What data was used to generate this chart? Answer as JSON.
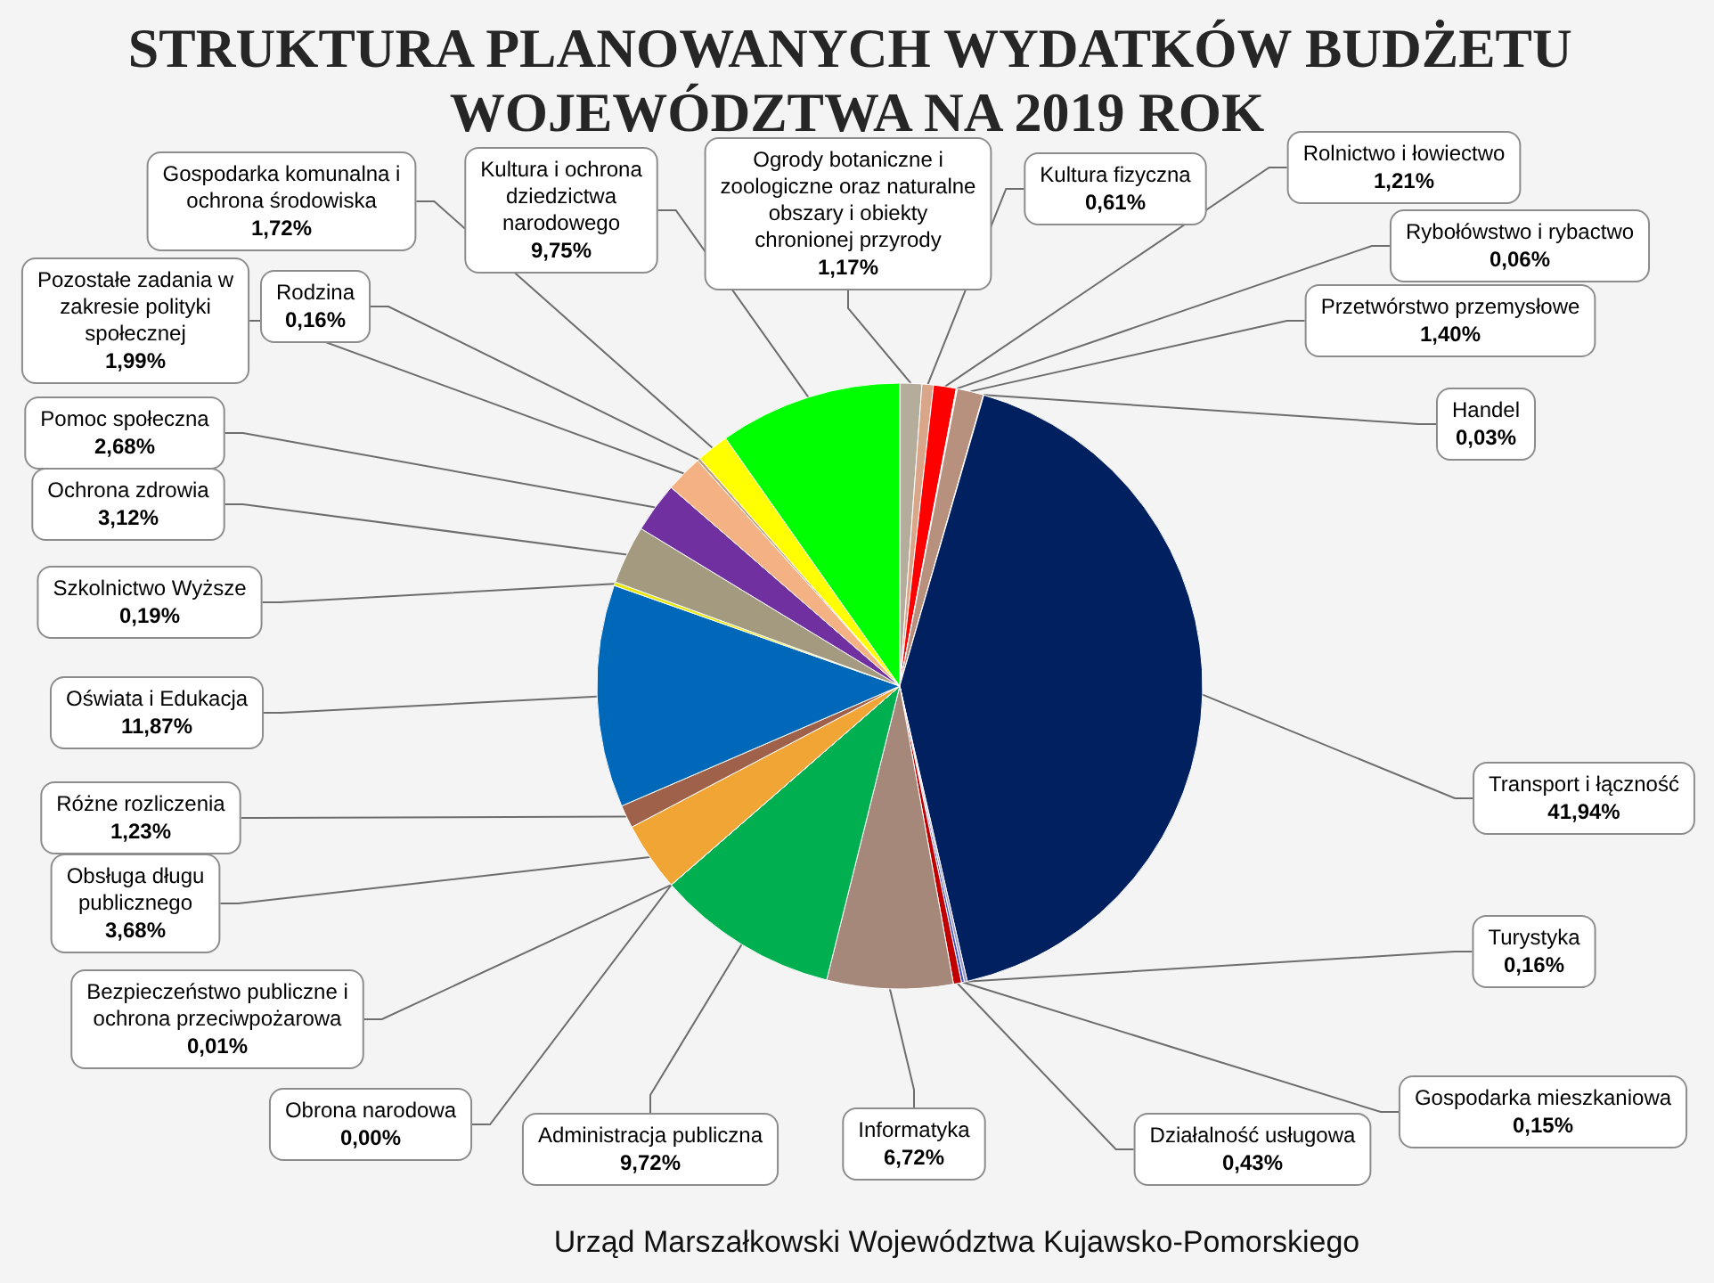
{
  "chart_data": {
    "type": "pie",
    "title": "STRUKTURA PLANOWANYCH WYDATKÓW BUDŻETU WOJEWÓDZTWA NA 2019 ROK",
    "categories": [
      "Ogrody botaniczne i zoologiczne oraz naturalne obszary i obiekty chronionej przyrody",
      "Kultura fizyczna",
      "Rolnictwo i łowiectwo",
      "Rybołówstwo i rybactwo",
      "Przetwórstwo przemysłowe",
      "Handel",
      "Transport i łączność",
      "Turystyka",
      "Gospodarka mieszkaniowa",
      "Działalność usługowa",
      "Informatyka",
      "Administracja publiczna",
      "Obrona narodowa",
      "Bezpieczeństwo publiczne i ochrona przeciwpożarowa",
      "Obsługa długu publicznego",
      "Różne rozliczenia",
      "Oświata i Edukacja",
      "Szkolnictwo Wyższe",
      "Ochrona zdrowia",
      "Pomoc społeczna",
      "Pozostałe zadania w zakresie polityki społecznej",
      "Rodzina",
      "Gospodarka komunalna i ochrona środowiska",
      "Kultura i ochrona dziedzictwa narodowego"
    ],
    "values": [
      1.17,
      0.61,
      1.21,
      0.06,
      1.4,
      0.03,
      41.94,
      0.16,
      0.15,
      0.43,
      6.72,
      9.72,
      0.0,
      0.01,
      3.68,
      1.23,
      11.87,
      0.19,
      3.12,
      2.68,
      1.99,
      0.16,
      1.72,
      9.75
    ],
    "colors": [
      "#b5ad9c",
      "#d9a68a",
      "#ff0000",
      "#f2f2f2",
      "#b8907e",
      "#00873e",
      "#002060",
      "#9a9ad0",
      "#4050c0",
      "#c00000",
      "#a5887a",
      "#00b050",
      "#c0504d",
      "#1f3f7f",
      "#f0a535",
      "#a0614a",
      "#0068b8",
      "#e6e600",
      "#a39a80",
      "#7030a0",
      "#f4b183",
      "#c0a080",
      "#ffff00",
      "#00ff00"
    ],
    "value_labels": [
      "1,17%",
      "0,61%",
      "1,21%",
      "0,06%",
      "1,40%",
      "0,03%",
      "41,94%",
      "0,16%",
      "0,15%",
      "0,43%",
      "6,72%",
      "9,72%",
      "0,00%",
      "0,01%",
      "3,68%",
      "1,23%",
      "11,87%",
      "0,19%",
      "3,12%",
      "2,68%",
      "1,99%",
      "0,16%",
      "1,72%",
      "9,75%"
    ],
    "annotations": [
      "Urząd Marszałkowski Województwa Kujawsko-Pomorskiego"
    ]
  }
}
